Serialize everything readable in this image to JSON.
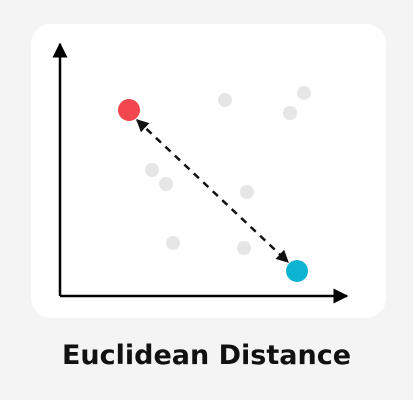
{
  "caption": "Euclidean Distance",
  "colors": {
    "background": "#f4f4f4",
    "card": "#ffffff",
    "axis": "#000000",
    "point_a": "#f2474f",
    "point_b": "#0db4d1",
    "background_points": "#e6e6e6",
    "connector": "#111111"
  },
  "points": {
    "a": {
      "label": "point-a",
      "color_key": "point_a"
    },
    "b": {
      "label": "point-b",
      "color_key": "point_b"
    }
  },
  "connector": {
    "style": "dashed",
    "arrowheads": "both"
  }
}
